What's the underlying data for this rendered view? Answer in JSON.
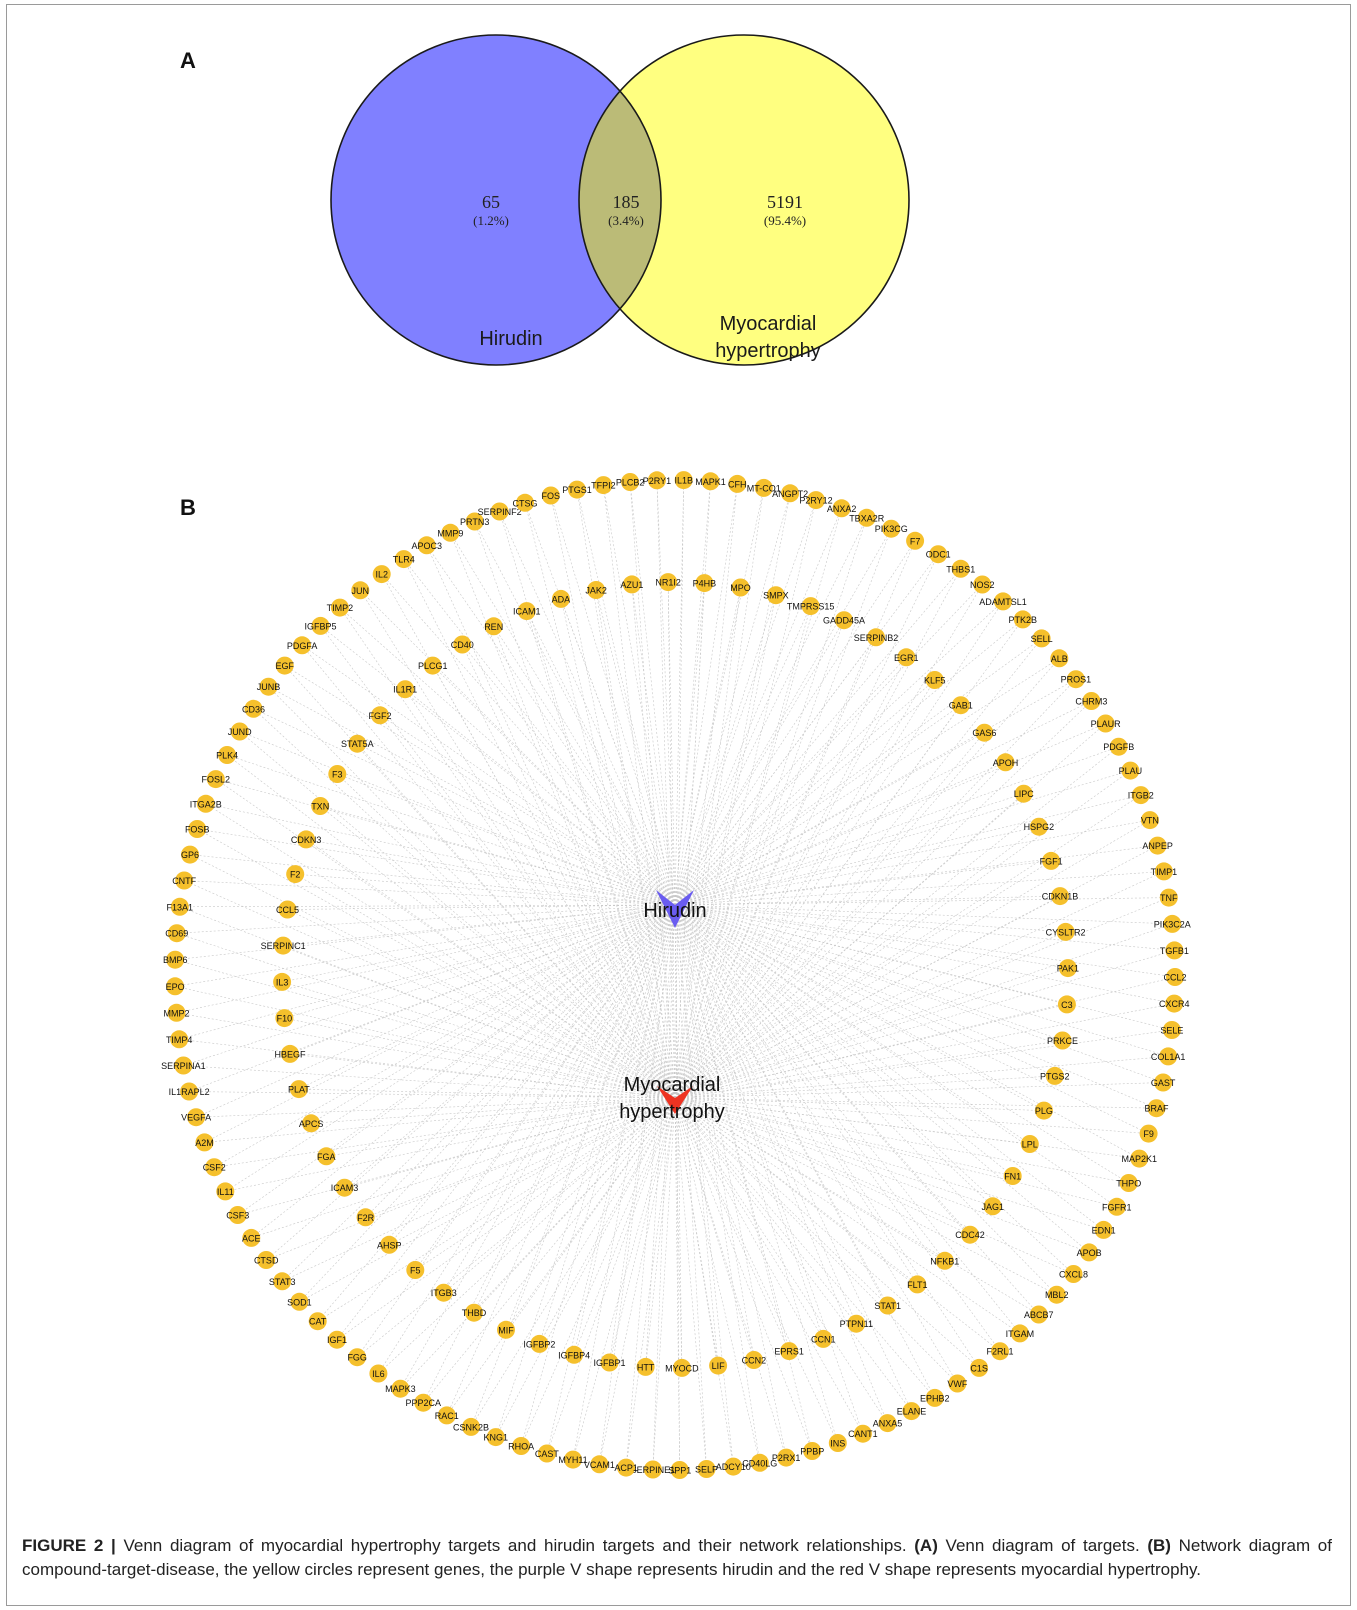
{
  "panel_a": {
    "label": "A",
    "left_only": {
      "count": "65",
      "percent": "(1.2%)",
      "color": "#8080ff"
    },
    "overlap": {
      "count": "185",
      "percent": "(3.4%)",
      "color": "#bbbb77"
    },
    "right_only": {
      "count": "5191",
      "percent": "(95.4%)",
      "color": "#ffff80"
    },
    "left_set_label": "Hirudin",
    "right_set_label_line1": "Myocardial",
    "right_set_label_line2": "hypertrophy"
  },
  "panel_b": {
    "label": "B",
    "center_hirudin": {
      "label": "Hirudin",
      "color": "#6a5cf0",
      "shape": "v-shape"
    },
    "center_disease": {
      "label_line1": "Myocardial",
      "label_line2": "hypertrophy",
      "color": "#ee3322",
      "shape": "v-shape"
    },
    "gene_node_color": "#f5c02c",
    "outer_ring": [
      "IL1B",
      "MAPK1",
      "CFH",
      "MT-CO1",
      "ANGPT2",
      "P2RY12",
      "ANXA2",
      "TBXA2R",
      "PIK3CG",
      "F7",
      "ODC1",
      "THBS1",
      "NOS2",
      "ADAMTSL1",
      "PTK2B",
      "SELL",
      "ALB",
      "PROS1",
      "CHRM3",
      "PLAUR",
      "PDGFB",
      "PLAU",
      "ITGB2",
      "VTN",
      "ANPEP",
      "TIMP1",
      "TNF",
      "PIK3C2A",
      "TGFB1",
      "CCL2",
      "CXCR4",
      "SELE",
      "COL1A1",
      "GAST",
      "BRAF",
      "F9",
      "MAP2K1",
      "THPO",
      "FGFR1",
      "EDN1",
      "APOB",
      "CXCL8",
      "MBL2",
      "ABCB7",
      "ITGAM",
      "F2RL1",
      "C1S",
      "VWF",
      "EPHB2",
      "ELANE",
      "ANXA5",
      "CANT1",
      "INS",
      "PPBP",
      "P2RX1",
      "CD40LG",
      "ADCY10",
      "SELP",
      "SPP1",
      "SERPINE1",
      "ACP1",
      "VCAM1",
      "MYH11",
      "CAST",
      "RHOA",
      "KNG1",
      "CSNK2B",
      "RAC1",
      "PPP2CA",
      "MAPK3",
      "IL6",
      "FGG",
      "IGF1",
      "CAT",
      "SOD1",
      "STAT3",
      "CTSD",
      "ACE",
      "CSF3",
      "IL11",
      "CSF2",
      "A2M",
      "VEGFA",
      "IL1RAPL2",
      "SERPINA1",
      "TIMP4",
      "MMP2",
      "EPO",
      "BMP6",
      "CD69",
      "F13A1",
      "CNTF",
      "GP6",
      "FOSB",
      "ITGA2B",
      "FOSL2",
      "PLK4",
      "JUND",
      "CD36",
      "JUNB",
      "EGF",
      "PDGFA",
      "IGFBP5",
      "TIMP2",
      "JUN",
      "IL2",
      "TLR4",
      "APOC3",
      "MMP9",
      "PRTN3",
      "SERPINF2",
      "CTSG",
      "FOS",
      "PTGS1",
      "TFPI2",
      "PLCB2",
      "P2RY1"
    ],
    "inner_ring": [
      "NR1I2",
      "P4HB",
      "MPO",
      "SMPX",
      "TMPRSS15",
      "GADD45A",
      "SERPINB2",
      "EGR1",
      "KLF5",
      "GAB1",
      "GAS6",
      "APOH",
      "LIPC",
      "HSPG2",
      "FGF1",
      "CDKN1B",
      "CYSLTR2",
      "PAK1",
      "C3",
      "PRKCE",
      "PTGS2",
      "PLG",
      "LPL",
      "FN1",
      "JAG1",
      "CDC42",
      "NFKB1",
      "FLT1",
      "STAT1",
      "PTPN11",
      "CCN1",
      "EPRS1",
      "CCN2",
      "LIF",
      "MYOCD",
      "HTT",
      "IGFBP1",
      "IGFBP4",
      "IGFBP2",
      "MIF",
      "THBD",
      "ITGB3",
      "F5",
      "AHSP",
      "F2R",
      "ICAM3",
      "FGA",
      "APCS",
      "PLAT",
      "HBEGF",
      "F10",
      "IL3",
      "SERPINC1",
      "CCL5",
      "F2",
      "CDKN3",
      "TXN",
      "F3",
      "STAT5A",
      "FGF2",
      "IL1R1",
      "PLCG1",
      "CD40",
      "REN",
      "ICAM1",
      "ADA",
      "JAK2",
      "AZU1"
    ]
  },
  "caption": {
    "figure_label": "FIGURE 2 |",
    "text_1": " Venn diagram of myocardial hypertrophy targets and hirudin targets and their network relationships. ",
    "part_a": "(A)",
    "text_2": " Venn diagram of targets. ",
    "part_b": "(B)",
    "text_3": " Network diagram of compound-target-disease, the yellow circles represent genes, the purple V shape represents hirudin and the red V shape represents myocardial hypertrophy."
  }
}
